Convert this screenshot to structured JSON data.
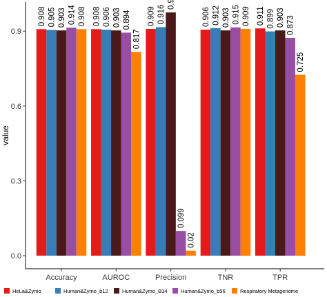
{
  "chart_data": {
    "type": "bar",
    "categories": [
      "Accuracy",
      "AUROC",
      "Precision",
      "TNR",
      "TPR"
    ],
    "ylabel": "value",
    "xlabel": "",
    "ylim": [
      0,
      1.0
    ],
    "yticks": [
      0.0,
      0.3,
      0.6,
      0.9
    ],
    "ytick_labels": [
      "0.0",
      "0.3",
      "0.6",
      "0.9"
    ],
    "grid": false,
    "legend_position": "bottom",
    "series": [
      {
        "name": "HeLa&Zymo",
        "color": "#E41A1C",
        "values": [
          0.908,
          0.908,
          0.909,
          0.906,
          0.911
        ],
        "labels": [
          "0.908",
          "0.908",
          "0.909",
          "0.906",
          "0.911"
        ]
      },
      {
        "name": "Human&Zymo_b12",
        "color": "#377EB8",
        "values": [
          0.905,
          0.906,
          0.916,
          0.912,
          0.899
        ],
        "labels": [
          "0.905",
          "0.906",
          "0.916",
          "0.912",
          "0.899"
        ]
      },
      {
        "name": "Human&Zymo_B34",
        "color": "#4A1A1A",
        "values": [
          0.903,
          0.903,
          0.975,
          0.903,
          0.903
        ],
        "labels": [
          "0.903",
          "0.903",
          "0.975",
          "0.903",
          "0.903"
        ]
      },
      {
        "name": "Human&Zymo_b56",
        "color": "#984EA3",
        "values": [
          0.914,
          0.894,
          0.099,
          0.915,
          0.873
        ],
        "labels": [
          "0.914",
          "0.894",
          "0.099",
          "0.915",
          "0.873"
        ]
      },
      {
        "name": "Respiratory Metagenome",
        "color": "#FF7F00",
        "values": [
          0.908,
          0.817,
          0.02,
          0.909,
          0.725
        ],
        "labels": [
          "0.908",
          "0.817",
          "0.02",
          "0.909",
          "0.725"
        ]
      }
    ]
  }
}
